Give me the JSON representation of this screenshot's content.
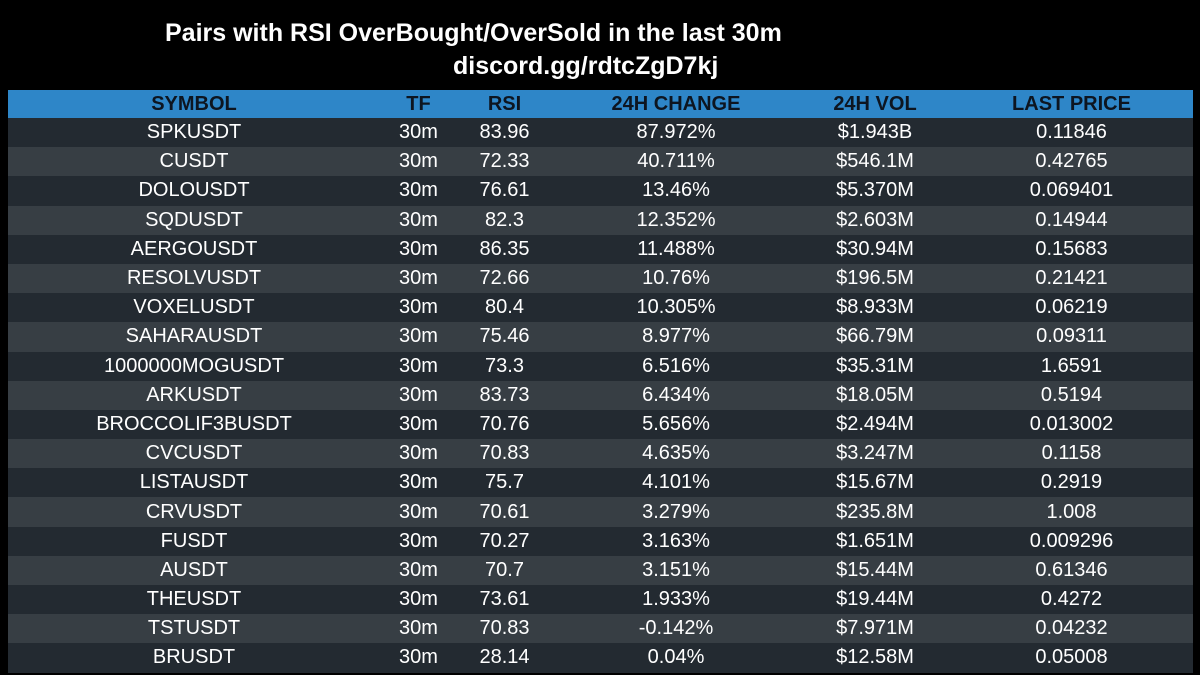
{
  "title": {
    "line1": "Pairs with RSI OverBought/OverSold in the last 30m",
    "line2": "discord.gg/rdtcZgD7kj"
  },
  "colors": {
    "background": "#000000",
    "header_bg": "#2e86c8",
    "header_text": "#0d1520",
    "row_dark": "#232a31",
    "row_light": "#373e44",
    "text": "#ffffff"
  },
  "table": {
    "columns": [
      "SYMBOL",
      "TF",
      "RSI",
      "24H CHANGE",
      "24H VOL",
      "LAST PRICE"
    ],
    "rows": [
      [
        "SPKUSDT",
        "30m",
        "83.96",
        "87.972%",
        "$1.943B",
        "0.11846"
      ],
      [
        "CUSDT",
        "30m",
        "72.33",
        "40.711%",
        "$546.1M",
        "0.42765"
      ],
      [
        "DOLOUSDT",
        "30m",
        "76.61",
        "13.46%",
        "$5.370M",
        "0.069401"
      ],
      [
        "SQDUSDT",
        "30m",
        "82.3",
        "12.352%",
        "$2.603M",
        "0.14944"
      ],
      [
        "AERGOUSDT",
        "30m",
        "86.35",
        "11.488%",
        "$30.94M",
        "0.15683"
      ],
      [
        "RESOLVUSDT",
        "30m",
        "72.66",
        "10.76%",
        "$196.5M",
        "0.21421"
      ],
      [
        "VOXELUSDT",
        "30m",
        "80.4",
        "10.305%",
        "$8.933M",
        "0.06219"
      ],
      [
        "SAHARAUSDT",
        "30m",
        "75.46",
        "8.977%",
        "$66.79M",
        "0.09311"
      ],
      [
        "1000000MOGUSDT",
        "30m",
        "73.3",
        "6.516%",
        "$35.31M",
        "1.6591"
      ],
      [
        "ARKUSDT",
        "30m",
        "83.73",
        "6.434%",
        "$18.05M",
        "0.5194"
      ],
      [
        "BROCCOLIF3BUSDT",
        "30m",
        "70.76",
        "5.656%",
        "$2.494M",
        "0.013002"
      ],
      [
        "CVCUSDT",
        "30m",
        "70.83",
        "4.635%",
        "$3.247M",
        "0.1158"
      ],
      [
        "LISTAUSDT",
        "30m",
        "75.7",
        "4.101%",
        "$15.67M",
        "0.2919"
      ],
      [
        "CRVUSDT",
        "30m",
        "70.61",
        "3.279%",
        "$235.8M",
        "1.008"
      ],
      [
        "FUSDT",
        "30m",
        "70.27",
        "3.163%",
        "$1.651M",
        "0.009296"
      ],
      [
        "AUSDT",
        "30m",
        "70.7",
        "3.151%",
        "$15.44M",
        "0.61346"
      ],
      [
        "THEUSDT",
        "30m",
        "73.61",
        "1.933%",
        "$19.44M",
        "0.4272"
      ],
      [
        "TSTUSDT",
        "30m",
        "70.83",
        "-0.142%",
        "$7.971M",
        "0.04232"
      ],
      [
        "BRUSDT",
        "30m",
        "28.14",
        "0.04%",
        "$12.58M",
        "0.05008"
      ]
    ]
  }
}
